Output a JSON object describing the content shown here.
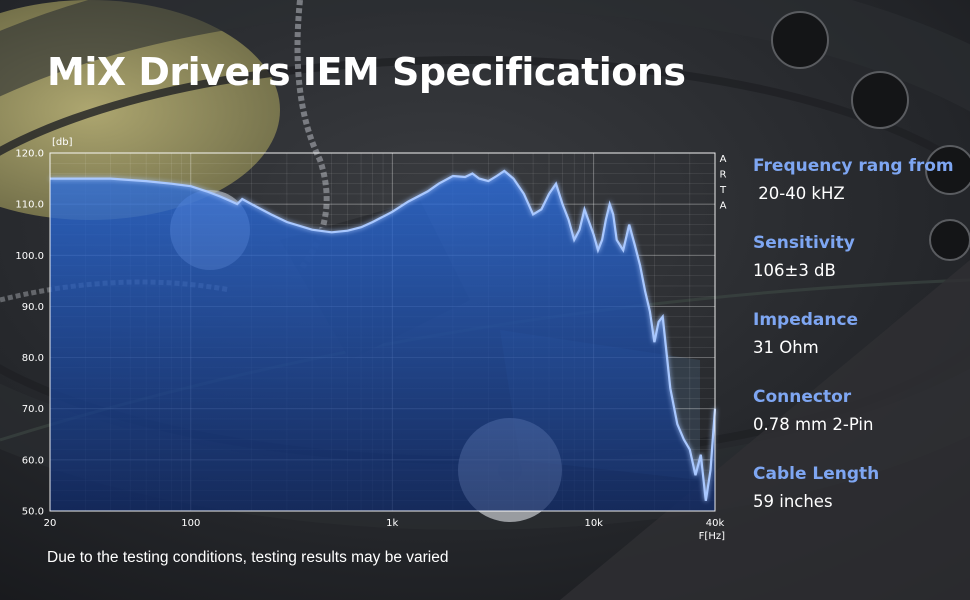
{
  "title": "MiX Drivers IEM Specifications",
  "note": "Due to the testing conditions, testing results may be varied",
  "chart_data": {
    "type": "area",
    "xscale": "log",
    "xlim": [
      20,
      40000
    ],
    "ylim": [
      50,
      120
    ],
    "grid": true,
    "ylabel": "[db]",
    "xlabel": "F[Hz]",
    "watermark": [
      "A",
      "R",
      "T",
      "A"
    ],
    "yticks": [
      "120.0",
      "110.0",
      "100.0",
      "90.0",
      "80.0",
      "70.0",
      "60.0",
      "50.0"
    ],
    "yticks_values": [
      120,
      110,
      100,
      90,
      80,
      70,
      60,
      50
    ],
    "xticks": [
      "20",
      "100",
      "1k",
      "10k",
      "40k"
    ],
    "xticks_values": [
      20,
      100,
      1000,
      10000,
      40000
    ],
    "x": [
      20,
      40,
      60,
      80,
      100,
      120,
      140,
      160,
      170,
      180,
      200,
      250,
      300,
      400,
      500,
      600,
      700,
      800,
      1000,
      1200,
      1500,
      1700,
      2000,
      2300,
      2500,
      2700,
      3000,
      3300,
      3600,
      4000,
      4500,
      5000,
      5500,
      6000,
      6500,
      7000,
      7500,
      8000,
      8500,
      9000,
      10000,
      10500,
      11000,
      11500,
      12000,
      12500,
      13000,
      14000,
      15000,
      16000,
      17000,
      18000,
      19000,
      20000,
      21000,
      22000,
      24000,
      26000,
      28000,
      30000,
      32000,
      34000,
      36000,
      38000,
      40000
    ],
    "y": [
      115,
      115,
      114.5,
      114,
      113.5,
      112.5,
      111.5,
      110.5,
      110,
      111,
      110,
      108,
      106.5,
      105,
      104.5,
      104.8,
      105.5,
      106.5,
      108.5,
      110.5,
      112.5,
      114,
      115.5,
      115.3,
      116,
      115,
      114.5,
      115.5,
      116.5,
      115,
      112,
      108,
      109,
      112,
      114,
      110,
      107,
      103,
      105,
      109,
      104,
      101,
      103,
      107,
      110,
      108,
      103,
      101,
      106,
      102,
      98,
      93,
      89,
      83,
      87,
      88,
      74,
      67,
      64,
      62,
      57,
      61,
      52,
      58,
      70
    ]
  },
  "specs": [
    {
      "label": "Frequency rang from",
      "value": " 20-40 kHZ"
    },
    {
      "label": "Sensitivity",
      "value": "106±3 dB"
    },
    {
      "label": "Impedance",
      "value": "31 Ohm"
    },
    {
      "label": "Connector",
      "value": "0.78 mm 2-Pin"
    },
    {
      "label": "Cable Length",
      "value": "59 inches"
    }
  ]
}
